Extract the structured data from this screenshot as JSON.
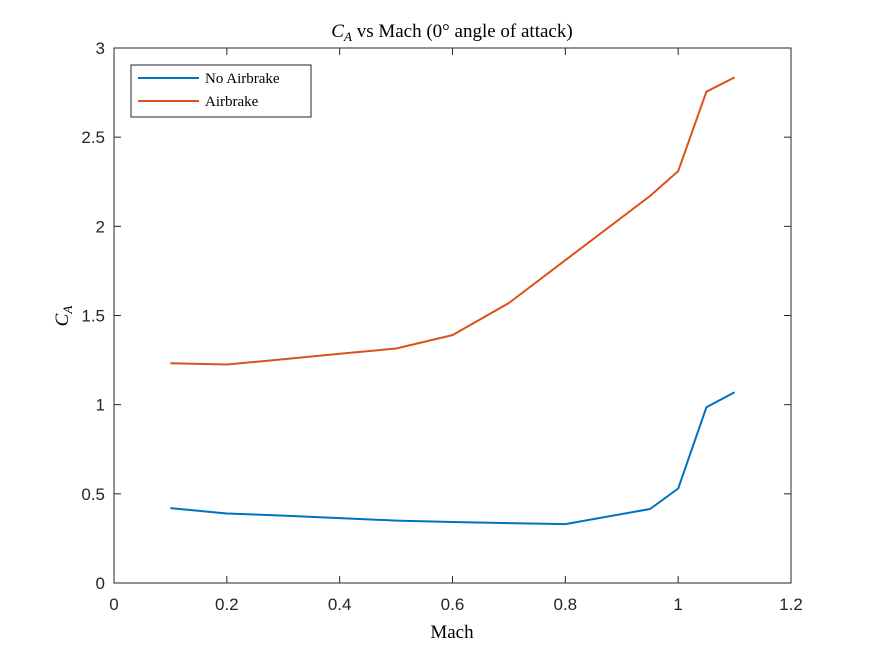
{
  "chart_data": {
    "type": "line",
    "title": {
      "symbol": "C",
      "subscript": "A",
      "rest": " vs Mach (0° angle of attack)"
    },
    "xlabel": "Mach",
    "ylabel": {
      "symbol": "C",
      "subscript": "A"
    },
    "xlim": [
      0,
      1.2
    ],
    "ylim": [
      0,
      3
    ],
    "xticks": [
      0,
      0.2,
      0.4,
      0.6,
      0.8,
      1,
      1.2
    ],
    "xtick_labels": [
      "0",
      "0.2",
      "0.4",
      "0.6",
      "0.8",
      "1",
      "1.2"
    ],
    "yticks": [
      0,
      0.5,
      1,
      1.5,
      2,
      2.5,
      3
    ],
    "ytick_labels": [
      "0",
      "0.5",
      "1",
      "1.5",
      "2",
      "2.5",
      "3"
    ],
    "grid": false,
    "legend_position": "top-left",
    "series": [
      {
        "name": "No Airbrake",
        "color": "#0072BD",
        "x": [
          0.1,
          0.2,
          0.3,
          0.4,
          0.5,
          0.6,
          0.7,
          0.8,
          0.95,
          1.0,
          1.05,
          1.1
        ],
        "y": [
          0.42,
          0.39,
          0.378,
          0.364,
          0.35,
          0.342,
          0.336,
          0.33,
          0.415,
          0.53,
          0.985,
          1.07
        ]
      },
      {
        "name": "Airbrake",
        "color": "#D95319",
        "x": [
          0.1,
          0.2,
          0.3,
          0.4,
          0.5,
          0.6,
          0.7,
          0.8,
          0.95,
          1.0,
          1.05,
          1.1
        ],
        "y": [
          1.232,
          1.225,
          1.255,
          1.285,
          1.315,
          1.39,
          1.57,
          1.81,
          2.17,
          2.31,
          2.755,
          2.835
        ]
      }
    ]
  }
}
